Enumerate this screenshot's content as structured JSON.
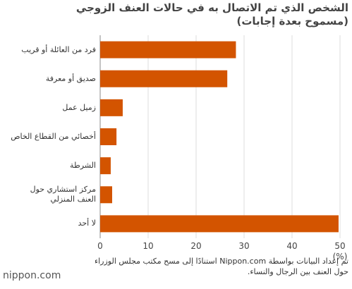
{
  "chart_data": {
    "type": "barh",
    "title": "الشخص الذي تم الاتصال به في حالات العنف الزوجي",
    "subtitle": "(مسموح بعدة إجابات)",
    "categories": [
      "فرد من العائلة أو قريب",
      "صديق أو معرفة",
      "زميل عمل",
      "أخصائي من القطاع الخاص",
      "الشرطة",
      "مركز استشاري حول\nالعنف المنزلي",
      "لا أحد"
    ],
    "values": [
      28.3,
      26.5,
      4.7,
      3.4,
      2.2,
      2.5,
      49.7
    ],
    "color": "#d35400",
    "xlim": [
      0,
      50
    ],
    "xticks": [
      0,
      10,
      20,
      30,
      40,
      50
    ],
    "xlabel": "(%)",
    "grid": true,
    "source": "تم إعداد البيانات بواسطة Nippon.com استنادًا إلى مسح مكتب مجلس الوزراء حول العنف بين الرجال والنساء.",
    "logo": "nippon.com"
  }
}
